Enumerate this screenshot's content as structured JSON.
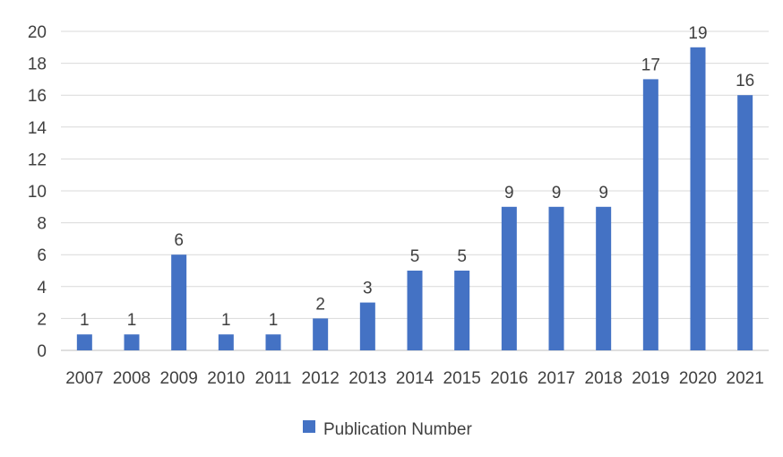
{
  "chart_data": {
    "type": "bar",
    "categories": [
      "2007",
      "2008",
      "2009",
      "2010",
      "2011",
      "2012",
      "2013",
      "2014",
      "2015",
      "2016",
      "2017",
      "2018",
      "2019",
      "2020",
      "2021"
    ],
    "series": [
      {
        "name": "Publication Number",
        "values": [
          1,
          1,
          6,
          1,
          1,
          2,
          3,
          5,
          5,
          9,
          9,
          9,
          17,
          19,
          16
        ],
        "color": "#4472C4"
      }
    ],
    "y_ticks": [
      "0",
      "2",
      "4",
      "6",
      "8",
      "10",
      "12",
      "14",
      "16",
      "18",
      "20"
    ],
    "ylim": [
      0,
      20
    ],
    "grid": true,
    "legend_position": "bottom",
    "data_labels": true
  }
}
